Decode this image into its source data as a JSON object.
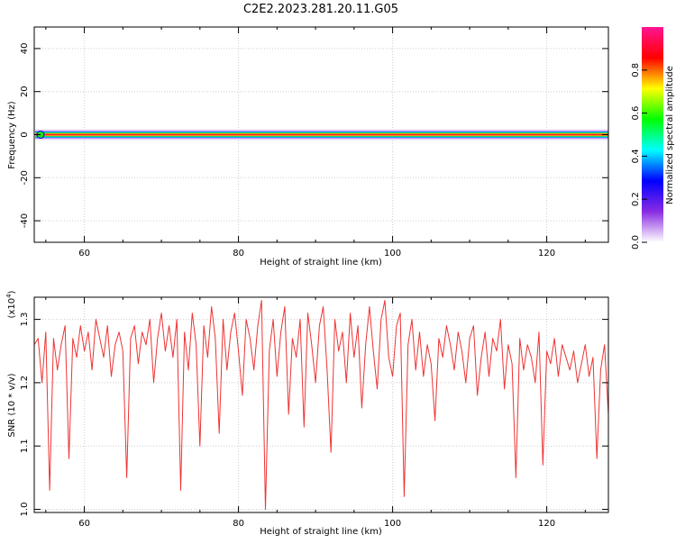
{
  "title": "C2E2.2023.281.20.11.G05",
  "chart_data": [
    {
      "type": "heatmap",
      "xlabel": "Height of straight line (km)",
      "ylabel": "Frequency (Hz)",
      "xlim": [
        53.5,
        128
      ],
      "ylim": [
        -50,
        50
      ],
      "x_ticks": [
        60,
        80,
        100,
        120
      ],
      "y_ticks": [
        -40,
        -20,
        0,
        20,
        40
      ],
      "x_tick_labels": [
        "60",
        "80",
        "100",
        "120"
      ],
      "y_tick_labels": [
        "-40",
        "-20",
        "0",
        "20",
        "40"
      ],
      "ridge_frequency": 0,
      "colorbar": {
        "label": "Normalized spectral amplitude",
        "range": [
          0,
          1
        ],
        "ticks": [
          0.0,
          0.2,
          0.4,
          0.6,
          0.8
        ],
        "tick_labels": [
          "0.0",
          "0.2",
          "0.4",
          "0.6",
          "0.8"
        ],
        "colors": [
          "#ffffff",
          "#8a2be2",
          "#0000ff",
          "#00ffff",
          "#00ff00",
          "#ffff00",
          "#ff0000",
          "#ff1493"
        ]
      }
    },
    {
      "type": "line",
      "xlabel": "Height of straight line (km)",
      "ylabel": "SNR (10 * v/v)",
      "scale_label": "(x10",
      "scale_exp": "4",
      "scale_close": ")",
      "xlim": [
        53.5,
        128
      ],
      "ylim": [
        0.995,
        1.335
      ],
      "x_ticks": [
        60,
        80,
        100,
        120
      ],
      "y_ticks": [
        1.0,
        1.1,
        1.2,
        1.3
      ],
      "x_tick_labels": [
        "60",
        "80",
        "100",
        "120"
      ],
      "y_tick_labels": [
        "1.0",
        "1.1",
        "1.2",
        "1.3"
      ],
      "series_color": "#ee3333",
      "series": [
        {
          "x": [
            53.5,
            54,
            54.5,
            55,
            55.5,
            56,
            56.5,
            57,
            57.5,
            58,
            58.5,
            59,
            59.5,
            60,
            60.5,
            61,
            61.5,
            62,
            62.5,
            63,
            63.5,
            64,
            64.5,
            65,
            65.5,
            66,
            66.5,
            67,
            67.5,
            68,
            68.5,
            69,
            69.5,
            70,
            70.5,
            71,
            71.5,
            72,
            72.5,
            73,
            73.5,
            74,
            74.5,
            75,
            75.5,
            76,
            76.5,
            77,
            77.5,
            78,
            78.5,
            79,
            79.5,
            80,
            80.5,
            81,
            81.5,
            82,
            82.5,
            83,
            83.5,
            84,
            84.5,
            85,
            85.5,
            86,
            86.5,
            87,
            87.5,
            88,
            88.5,
            89,
            89.5,
            90,
            90.5,
            91,
            91.5,
            92,
            92.5,
            93,
            93.5,
            94,
            94.5,
            95,
            95.5,
            96,
            96.5,
            97,
            97.5,
            98,
            98.5,
            99,
            99.5,
            100,
            100.5,
            101,
            101.5,
            102,
            102.5,
            103,
            103.5,
            104,
            104.5,
            105,
            105.5,
            106,
            106.5,
            107,
            107.5,
            108,
            108.5,
            109,
            109.5,
            110,
            110.5,
            111,
            111.5,
            112,
            112.5,
            113,
            113.5,
            114,
            114.5,
            115,
            115.5,
            116,
            116.5,
            117,
            117.5,
            118,
            118.5,
            119,
            119.5,
            120,
            120.5,
            121,
            121.5,
            122,
            122.5,
            123,
            123.5,
            124,
            124.5,
            125,
            125.5,
            126,
            126.5,
            127,
            127.5,
            128
          ],
          "y": [
            1.26,
            1.27,
            1.2,
            1.28,
            1.03,
            1.27,
            1.22,
            1.26,
            1.29,
            1.08,
            1.27,
            1.24,
            1.29,
            1.25,
            1.28,
            1.22,
            1.3,
            1.27,
            1.24,
            1.29,
            1.21,
            1.26,
            1.28,
            1.25,
            1.05,
            1.27,
            1.29,
            1.23,
            1.28,
            1.26,
            1.3,
            1.2,
            1.27,
            1.31,
            1.25,
            1.29,
            1.24,
            1.3,
            1.03,
            1.28,
            1.22,
            1.31,
            1.26,
            1.1,
            1.29,
            1.24,
            1.32,
            1.27,
            1.12,
            1.3,
            1.22,
            1.28,
            1.31,
            1.25,
            1.18,
            1.3,
            1.27,
            1.22,
            1.29,
            1.33,
            1.0,
            1.25,
            1.3,
            1.21,
            1.28,
            1.32,
            1.15,
            1.27,
            1.24,
            1.3,
            1.13,
            1.31,
            1.26,
            1.2,
            1.29,
            1.32,
            1.22,
            1.09,
            1.3,
            1.25,
            1.28,
            1.2,
            1.31,
            1.24,
            1.29,
            1.16,
            1.26,
            1.32,
            1.25,
            1.19,
            1.3,
            1.33,
            1.24,
            1.21,
            1.29,
            1.31,
            1.02,
            1.26,
            1.3,
            1.22,
            1.28,
            1.21,
            1.26,
            1.23,
            1.14,
            1.27,
            1.24,
            1.29,
            1.26,
            1.22,
            1.28,
            1.25,
            1.2,
            1.27,
            1.29,
            1.18,
            1.24,
            1.28,
            1.21,
            1.27,
            1.25,
            1.3,
            1.19,
            1.26,
            1.23,
            1.05,
            1.27,
            1.22,
            1.26,
            1.24,
            1.2,
            1.28,
            1.07,
            1.25,
            1.23,
            1.27,
            1.21,
            1.26,
            1.24,
            1.22,
            1.25,
            1.2,
            1.23,
            1.26,
            1.21,
            1.24,
            1.08,
            1.22,
            1.26,
            1.15
          ]
        }
      ]
    }
  ]
}
